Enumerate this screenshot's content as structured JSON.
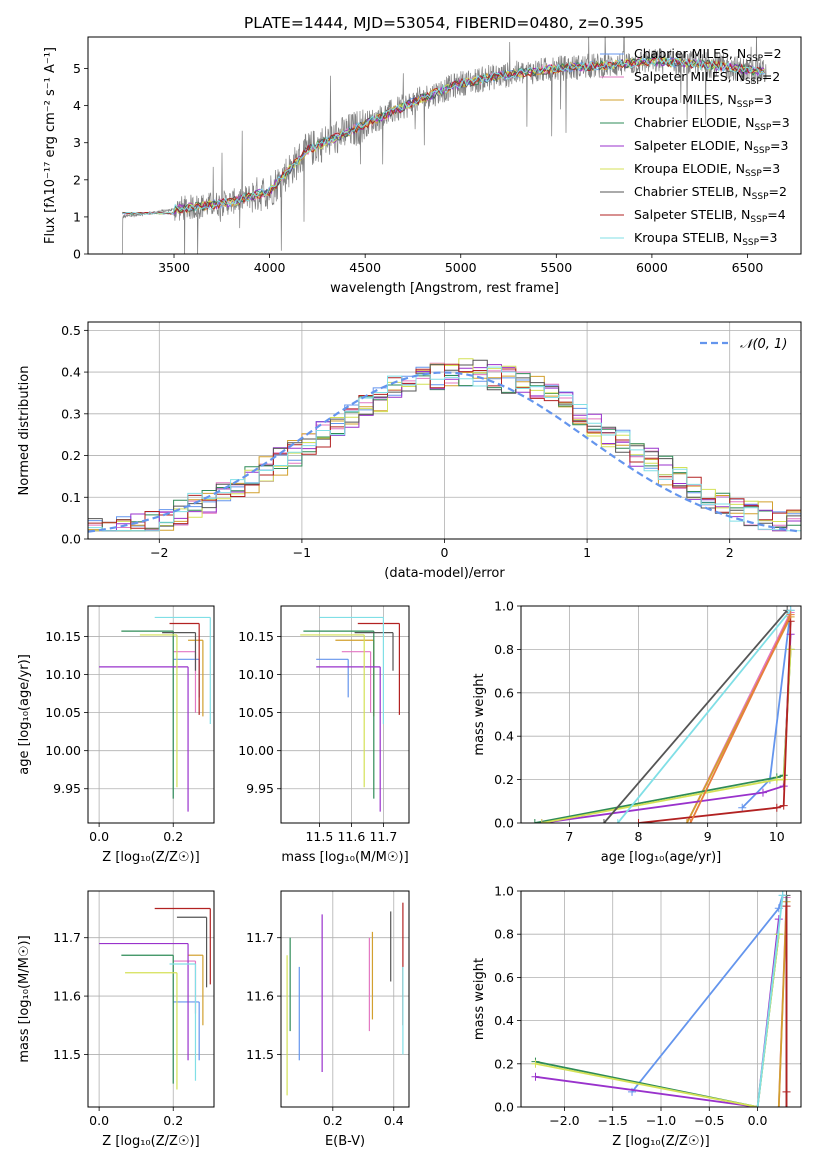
{
  "figure": {
    "title": "PLATE=1444, MJD=53054, FIBERID=0480, z=0.395"
  },
  "legend_spectrum": [
    {
      "label": "Chabrier MILES, N",
      "sub": "SSP",
      "suffix": "=2",
      "color": "#6495ed"
    },
    {
      "label": "Salpeter MILES, N",
      "sub": "SSP",
      "suffix": "=2",
      "color": "#e377c2"
    },
    {
      "label": "Kroupa MILES, N",
      "sub": "SSP",
      "suffix": "=3",
      "color": "#d2a02e"
    },
    {
      "label": "Chabrier ELODIE, N",
      "sub": "SSP",
      "suffix": "=3",
      "color": "#2e8b57"
    },
    {
      "label": "Salpeter ELODIE, N",
      "sub": "SSP",
      "suffix": "=3",
      "color": "#9932cc"
    },
    {
      "label": "Kroupa ELODIE, N",
      "sub": "SSP",
      "suffix": "=3",
      "color": "#d4e157"
    },
    {
      "label": "Chabrier STELIB, N",
      "sub": "SSP",
      "suffix": "=2",
      "color": "#555555"
    },
    {
      "label": "Salpeter STELIB, N",
      "sub": "SSP",
      "suffix": "=4",
      "color": "#b22222"
    },
    {
      "label": "Kroupa STELIB, N",
      "sub": "SSP",
      "suffix": "=3",
      "color": "#80dfe6"
    }
  ],
  "legend_hist": {
    "label": "𝒩(0, 1)",
    "color": "#6495ed"
  },
  "chart_data": [
    {
      "id": "spectrum",
      "type": "line",
      "xlabel": "wavelength [Angstrom, rest frame]",
      "ylabel": "Flux [fλ10⁻¹⁷ erg cm⁻² s⁻¹ A⁻¹]",
      "xlim": [
        3050,
        6780
      ],
      "ylim": [
        0,
        5.85
      ],
      "xticks": [
        3500,
        4000,
        4500,
        5000,
        5500,
        6000,
        6500
      ],
      "yticks": [
        0,
        1,
        2,
        3,
        4,
        5
      ],
      "data_color": "#808080",
      "model_knots_x": [
        3230,
        3500,
        3800,
        4000,
        4200,
        4500,
        4800,
        5000,
        5200,
        5500,
        5800,
        6000,
        6300,
        6600
      ],
      "model_knots_y": [
        1.0,
        1.2,
        1.4,
        1.7,
        2.8,
        3.5,
        4.2,
        4.6,
        4.8,
        5.0,
        5.1,
        5.2,
        5.1,
        4.9
      ]
    },
    {
      "id": "residual-histogram",
      "type": "line",
      "xlabel": "(data-model)/error",
      "ylabel": "Normed distribution",
      "xlim": [
        -2.5,
        2.5
      ],
      "ylim": [
        0,
        0.52
      ],
      "xticks": [
        -2,
        -1,
        0,
        1,
        2
      ],
      "yticks": [
        0.0,
        0.1,
        0.2,
        0.3,
        0.4,
        0.5
      ],
      "grid": true,
      "legend_position": "top-right",
      "gaussian": {
        "mean": 0,
        "sigma": 1
      }
    },
    {
      "id": "age-vs-Z",
      "type": "scatter",
      "xlabel": "Z [log₁₀(Z/Z☉)]",
      "ylabel": "age  [log₁₀(age/yr)]",
      "xlim": [
        -0.03,
        0.31
      ],
      "ylim": [
        9.905,
        10.19
      ],
      "xticks": [
        0.0,
        0.2
      ],
      "yticks": [
        9.95,
        10.0,
        10.05,
        10.1,
        10.15
      ],
      "grid": true,
      "points": [
        {
          "x": 0.27,
          "y": 10.12,
          "xerr": [
            0.07,
            0.0
          ],
          "yerr": [
            0.05,
            0.0
          ],
          "color": "#6495ed"
        },
        {
          "x": 0.26,
          "y": 10.13,
          "xerr": [
            0.06,
            0.0
          ],
          "yerr": [
            0.08,
            0.0
          ],
          "color": "#e377c2"
        },
        {
          "x": 0.28,
          "y": 10.145,
          "xerr": [
            0.04,
            0.0
          ],
          "yerr": [
            0.1,
            0.0
          ],
          "color": "#d2a02e"
        },
        {
          "x": 0.2,
          "y": 10.157,
          "xerr": [
            0.14,
            0.0
          ],
          "yerr": [
            0.22,
            0.0
          ],
          "color": "#2e8b57"
        },
        {
          "x": 0.24,
          "y": 10.11,
          "xerr": [
            0.24,
            0.0
          ],
          "yerr": [
            0.19,
            0.0
          ],
          "color": "#9932cc"
        },
        {
          "x": 0.21,
          "y": 10.152,
          "xerr": [
            0.1,
            0.0
          ],
          "yerr": [
            0.2,
            0.0
          ],
          "color": "#d4e157"
        },
        {
          "x": 0.26,
          "y": 10.155,
          "xerr": [
            0.09,
            0.0
          ],
          "yerr": [
            0.05,
            0.0
          ],
          "color": "#555555"
        },
        {
          "x": 0.27,
          "y": 10.167,
          "xerr": [
            0.08,
            0.0
          ],
          "yerr": [
            0.12,
            0.0
          ],
          "color": "#b22222"
        },
        {
          "x": 0.3,
          "y": 10.175,
          "xerr": [
            0.15,
            0.0
          ],
          "yerr": [
            0.14,
            0.0
          ],
          "color": "#80dfe6"
        }
      ]
    },
    {
      "id": "age-vs-mass",
      "type": "scatter",
      "xlabel": "mass [log₁₀(M/M☉)]",
      "ylabel": "",
      "xlim": [
        11.38,
        11.78
      ],
      "ylim": [
        9.905,
        10.19
      ],
      "xticks": [
        11.5,
        11.6,
        11.7
      ],
      "yticks": [
        9.95,
        10.0,
        10.05,
        10.1,
        10.15
      ],
      "grid": true,
      "points": [
        {
          "x": 11.59,
          "y": 10.12,
          "xerr": [
            0.1,
            0.0
          ],
          "yerr": [
            0.05,
            0.0
          ],
          "color": "#6495ed"
        },
        {
          "x": 11.66,
          "y": 10.13,
          "xerr": [
            0.09,
            0.0
          ],
          "yerr": [
            0.08,
            0.0
          ],
          "color": "#e377c2"
        },
        {
          "x": 11.67,
          "y": 10.145,
          "xerr": [
            0.12,
            0.0
          ],
          "yerr": [
            0.1,
            0.0
          ],
          "color": "#d2a02e"
        },
        {
          "x": 11.67,
          "y": 10.157,
          "xerr": [
            0.22,
            0.0
          ],
          "yerr": [
            0.22,
            0.0
          ],
          "color": "#2e8b57"
        },
        {
          "x": 11.69,
          "y": 10.11,
          "xerr": [
            0.2,
            0.0
          ],
          "yerr": [
            0.19,
            0.0
          ],
          "color": "#9932cc"
        },
        {
          "x": 11.64,
          "y": 10.152,
          "xerr": [
            0.2,
            0.0
          ],
          "yerr": [
            0.2,
            0.0
          ],
          "color": "#d4e157"
        },
        {
          "x": 11.73,
          "y": 10.155,
          "xerr": [
            0.12,
            0.0
          ],
          "yerr": [
            0.05,
            0.0
          ],
          "color": "#555555"
        },
        {
          "x": 11.75,
          "y": 10.167,
          "xerr": [
            0.13,
            0.0
          ],
          "yerr": [
            0.12,
            0.0
          ],
          "color": "#b22222"
        },
        {
          "x": 11.7,
          "y": 10.175,
          "xerr": [
            0.2,
            0.0
          ],
          "yerr": [
            0.14,
            0.0
          ],
          "color": "#80dfe6"
        }
      ]
    },
    {
      "id": "mass-weight-vs-age",
      "type": "line",
      "xlabel": "age  [log₁₀(age/yr)]",
      "ylabel": "mass weight",
      "xlim": [
        6.3,
        10.35
      ],
      "ylim": [
        0,
        1.0
      ],
      "xticks": [
        7,
        8,
        9,
        10
      ],
      "yticks": [
        0.0,
        0.2,
        0.4,
        0.6,
        0.8,
        1.0
      ],
      "grid": true,
      "series": [
        {
          "color": "#6495ed",
          "x": [
            9.5,
            9.9,
            10.2
          ],
          "y": [
            0.07,
            0.2,
            0.98
          ]
        },
        {
          "color": "#e377c2",
          "x": [
            8.7,
            10.2
          ],
          "y": [
            0.0,
            0.97
          ]
        },
        {
          "color": "#d2a02e",
          "x": [
            8.7,
            10.2
          ],
          "y": [
            0.0,
            0.95
          ]
        },
        {
          "color": "#2e8b57",
          "x": [
            6.5,
            10.0,
            10.1,
            10.2
          ],
          "y": [
            0.0,
            0.21,
            0.22,
            0.8
          ]
        },
        {
          "color": "#9932cc",
          "x": [
            6.6,
            9.8,
            10.1,
            10.2
          ],
          "y": [
            0.0,
            0.14,
            0.17,
            0.87
          ]
        },
        {
          "color": "#d4e157",
          "x": [
            6.6,
            10.0,
            10.1,
            10.2
          ],
          "y": [
            0.0,
            0.2,
            0.2,
            0.8
          ]
        },
        {
          "color": "#555555",
          "x": [
            7.5,
            10.15
          ],
          "y": [
            0.0,
            0.98
          ]
        },
        {
          "color": "#b22222",
          "x": [
            8.0,
            10.0,
            10.1,
            10.2
          ],
          "y": [
            0.0,
            0.07,
            0.08,
            0.93
          ]
        },
        {
          "color": "#80dfe6",
          "x": [
            7.7,
            10.2
          ],
          "y": [
            0.0,
            0.98
          ]
        },
        {
          "color": "#e87d3e",
          "x": [
            8.75,
            10.2
          ],
          "y": [
            0.0,
            0.96
          ]
        }
      ]
    },
    {
      "id": "mass-vs-Z",
      "type": "scatter",
      "xlabel": "Z [log₁₀(Z/Z☉)]",
      "ylabel": "mass [log₁₀(M/M☉)]",
      "xlim": [
        -0.03,
        0.31
      ],
      "ylim": [
        11.41,
        11.78
      ],
      "xticks": [
        0.0,
        0.2
      ],
      "yticks": [
        11.5,
        11.6,
        11.7
      ],
      "grid": true,
      "points": [
        {
          "x": 0.27,
          "y": 11.59,
          "xerr": [
            0.07,
            0.0
          ],
          "yerr": [
            0.1,
            0.0
          ],
          "color": "#6495ed"
        },
        {
          "x": 0.26,
          "y": 11.66,
          "xerr": [
            0.06,
            0.0
          ],
          "yerr": [
            0.09,
            0.0
          ],
          "color": "#e377c2"
        },
        {
          "x": 0.28,
          "y": 11.67,
          "xerr": [
            0.04,
            0.0
          ],
          "yerr": [
            0.12,
            0.0
          ],
          "color": "#d2a02e"
        },
        {
          "x": 0.2,
          "y": 11.67,
          "xerr": [
            0.14,
            0.0
          ],
          "yerr": [
            0.22,
            0.0
          ],
          "color": "#2e8b57"
        },
        {
          "x": 0.24,
          "y": 11.69,
          "xerr": [
            0.24,
            0.0
          ],
          "yerr": [
            0.2,
            0.0
          ],
          "color": "#9932cc"
        },
        {
          "x": 0.21,
          "y": 11.64,
          "xerr": [
            0.14,
            0.0
          ],
          "yerr": [
            0.2,
            0.0
          ],
          "color": "#d4e157"
        },
        {
          "x": 0.29,
          "y": 11.735,
          "xerr": [
            0.08,
            0.0
          ],
          "yerr": [
            0.12,
            0.0
          ],
          "color": "#555555"
        },
        {
          "x": 0.3,
          "y": 11.75,
          "xerr": [
            0.15,
            0.0
          ],
          "yerr": [
            0.13,
            0.0
          ],
          "color": "#b22222"
        },
        {
          "x": 0.26,
          "y": 11.655,
          "xerr": [
            0.07,
            0.0
          ],
          "yerr": [
            0.2,
            0.0
          ],
          "color": "#80dfe6"
        }
      ]
    },
    {
      "id": "mass-vs-EBV",
      "type": "scatter",
      "xlabel": "E(B-V)",
      "ylabel": "",
      "xlim": [
        0.03,
        0.45
      ],
      "ylim": [
        11.41,
        11.78
      ],
      "xticks": [
        0.2,
        0.4
      ],
      "yticks": [
        11.5,
        11.6,
        11.7
      ],
      "grid": true,
      "points": [
        {
          "x": 0.09,
          "y": 11.59,
          "xerr": [
            0.0,
            0.0
          ],
          "yerr": [
            0.1,
            0.06
          ],
          "color": "#6495ed"
        },
        {
          "x": 0.32,
          "y": 11.62,
          "xerr": [
            0.0,
            0.0
          ],
          "yerr": [
            0.08,
            0.08
          ],
          "color": "#e377c2"
        },
        {
          "x": 0.33,
          "y": 11.64,
          "xerr": [
            0.0,
            0.0
          ],
          "yerr": [
            0.08,
            0.07
          ],
          "color": "#d2a02e"
        },
        {
          "x": 0.06,
          "y": 11.62,
          "xerr": [
            0.0,
            0.0
          ],
          "yerr": [
            0.08,
            0.08
          ],
          "color": "#2e8b57"
        },
        {
          "x": 0.165,
          "y": 11.6,
          "xerr": [
            0.0,
            0.0
          ],
          "yerr": [
            0.13,
            0.14
          ],
          "color": "#9932cc"
        },
        {
          "x": 0.05,
          "y": 11.55,
          "xerr": [
            0.0,
            0.0
          ],
          "yerr": [
            0.12,
            0.12
          ],
          "color": "#d4e157"
        },
        {
          "x": 0.39,
          "y": 11.685,
          "xerr": [
            0.0,
            0.0
          ],
          "yerr": [
            0.06,
            0.06
          ],
          "color": "#555555"
        },
        {
          "x": 0.43,
          "y": 11.68,
          "xerr": [
            0.0,
            0.0
          ],
          "yerr": [
            0.13,
            0.08
          ],
          "color": "#b22222"
        },
        {
          "x": 0.43,
          "y": 11.58,
          "xerr": [
            0.0,
            0.0
          ],
          "yerr": [
            0.08,
            0.07
          ],
          "color": "#80dfe6"
        }
      ]
    },
    {
      "id": "mass-weight-vs-Z",
      "type": "line",
      "xlabel": "Z [log₁₀(Z/Z☉)]",
      "ylabel": "mass weight",
      "xlim": [
        -2.45,
        0.45
      ],
      "ylim": [
        0,
        1.0
      ],
      "xticks": [
        -2.0,
        -1.5,
        -1.0,
        -0.5,
        0.0
      ],
      "yticks": [
        0.0,
        0.2,
        0.4,
        0.6,
        0.8,
        1.0
      ],
      "grid": true,
      "series": [
        {
          "color": "#6495ed",
          "x": [
            -1.3,
            0.22,
            0.26
          ],
          "y": [
            0.07,
            0.92,
            0.98
          ]
        },
        {
          "color": "#e377c2",
          "x": [
            0.22,
            0.3
          ],
          "y": [
            0.0,
            0.97
          ]
        },
        {
          "color": "#d2a02e",
          "x": [
            0.22,
            0.3
          ],
          "y": [
            0.0,
            0.95
          ]
        },
        {
          "color": "#2e8b57",
          "x": [
            -2.3,
            0.0,
            0.22
          ],
          "y": [
            0.21,
            0.0,
            0.8
          ]
        },
        {
          "color": "#9932cc",
          "x": [
            -2.3,
            0.0,
            0.22
          ],
          "y": [
            0.14,
            0.0,
            0.87
          ]
        },
        {
          "color": "#d4e157",
          "x": [
            -2.3,
            0.0,
            0.22
          ],
          "y": [
            0.2,
            0.0,
            0.8
          ]
        },
        {
          "color": "#555555",
          "x": [
            0.3,
            0.3
          ],
          "y": [
            0.0,
            0.98
          ]
        },
        {
          "color": "#b22222",
          "x": [
            0.3,
            0.3,
            0.3
          ],
          "y": [
            0.0,
            0.07,
            0.93
          ]
        },
        {
          "color": "#80dfe6",
          "x": [
            0.0,
            0.26
          ],
          "y": [
            0.0,
            0.98
          ]
        }
      ]
    }
  ]
}
